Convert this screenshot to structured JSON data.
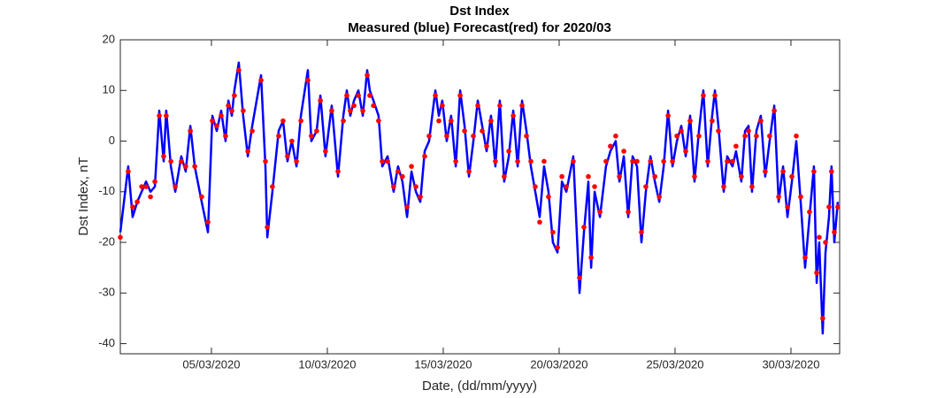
{
  "chart_data": {
    "type": "line",
    "title": "Dst Index",
    "subtitle": "Measured (blue) Forecast(red) for 2020/03",
    "xlabel": "Date, (dd/mm/yyyy)",
    "ylabel": "Dst Index, nT",
    "xlim": [
      1.07,
      32.1
    ],
    "ylim": [
      -42,
      20
    ],
    "xticks": [
      {
        "value": 5,
        "label": "05/03/2020"
      },
      {
        "value": 10,
        "label": "10/03/2020"
      },
      {
        "value": 15,
        "label": "15/03/2020"
      },
      {
        "value": 20,
        "label": "20/03/2020"
      },
      {
        "value": 25,
        "label": "25/03/2020"
      },
      {
        "value": 30,
        "label": "30/03/2020"
      }
    ],
    "yticks": [
      -40,
      -30,
      -20,
      -10,
      0,
      10,
      20
    ],
    "grid": false,
    "x": [
      1.07,
      1.41,
      1.6,
      1.8,
      1.99,
      2.18,
      2.37,
      2.56,
      2.75,
      2.94,
      3.05,
      3.25,
      3.44,
      3.7,
      3.89,
      4.09,
      4.28,
      4.58,
      4.85,
      5.04,
      5.23,
      5.42,
      5.61,
      5.73,
      5.88,
      5.99,
      6.18,
      6.37,
      6.57,
      6.76,
      7.14,
      7.33,
      7.41,
      7.63,
      7.9,
      8.09,
      8.28,
      8.47,
      8.67,
      8.86,
      9.16,
      9.31,
      9.54,
      9.7,
      9.92,
      10.19,
      10.46,
      10.69,
      10.84,
      10.99,
      11.15,
      11.34,
      11.53,
      11.72,
      11.83,
      11.99,
      12.21,
      12.37,
      12.6,
      12.86,
      13.05,
      13.24,
      13.44,
      13.63,
      13.82,
      14.01,
      14.2,
      14.39,
      14.66,
      14.81,
      14.96,
      15.15,
      15.34,
      15.54,
      15.73,
      15.92,
      16.11,
      16.3,
      16.49,
      16.68,
      16.87,
      17.06,
      17.25,
      17.44,
      17.63,
      17.83,
      18.02,
      18.21,
      18.4,
      18.59,
      18.78,
      18.97,
      19.16,
      19.35,
      19.54,
      19.73,
      19.93,
      20.12,
      20.31,
      20.61,
      20.88,
      21.07,
      21.26,
      21.38,
      21.53,
      21.76,
      22.02,
      22.21,
      22.44,
      22.6,
      22.79,
      22.98,
      23.17,
      23.36,
      23.55,
      23.74,
      23.94,
      24.13,
      24.32,
      24.51,
      24.7,
      24.89,
      25.08,
      25.27,
      25.46,
      25.65,
      25.84,
      26.03,
      26.22,
      26.41,
      26.6,
      26.72,
      26.87,
      27.1,
      27.25,
      27.48,
      27.63,
      27.86,
      28.02,
      28.17,
      28.32,
      28.51,
      28.7,
      28.89,
      29.08,
      29.28,
      29.47,
      29.66,
      29.85,
      30.04,
      30.23,
      30.42,
      30.61,
      30.8,
      30.99,
      31.11,
      31.22,
      31.37,
      31.49,
      31.64,
      31.75,
      31.87,
      32.02
    ],
    "series": [
      {
        "name": "Measured",
        "color": "#0000ff",
        "style": "line",
        "values": [
          -18,
          -5,
          -15,
          -12,
          -10,
          -8,
          -10,
          -9,
          6,
          -4,
          6,
          -5,
          -10,
          -3,
          -6,
          3,
          -5,
          -12,
          -18,
          5,
          2,
          6,
          0,
          8,
          5,
          10,
          15.5,
          5,
          -3,
          3,
          13,
          -5,
          -19,
          -10,
          2,
          4,
          -4,
          0,
          -5,
          5,
          14,
          0,
          2,
          9,
          -3,
          7,
          -7,
          5,
          10,
          5,
          8,
          10,
          5,
          14,
          10,
          8,
          5,
          -5,
          -3,
          -10,
          -5,
          -8,
          -15,
          -6,
          -10,
          -12,
          -2,
          0,
          10,
          5,
          8,
          0,
          5,
          -5,
          10,
          3,
          -7,
          0,
          8,
          3,
          -2,
          5,
          -5,
          8,
          -8,
          -3,
          6,
          -5,
          8,
          2,
          -5,
          -10,
          -15,
          -5,
          -10,
          -20,
          -22,
          -8,
          -10,
          -3,
          -30,
          -18,
          -8,
          -25,
          -10,
          -15,
          -5,
          -2,
          0,
          -8,
          -3,
          -15,
          -3,
          -5,
          -20,
          -10,
          -3,
          -8,
          -12,
          -5,
          6,
          -5,
          0,
          3,
          -3,
          5,
          -8,
          2,
          10,
          -5,
          5,
          10,
          3,
          -10,
          -3,
          -5,
          -2,
          -8,
          2,
          3,
          -10,
          2,
          5,
          -7,
          0,
          7,
          -12,
          -5,
          -15,
          -8,
          0,
          -12,
          -25,
          -15,
          -5,
          -28,
          -20,
          -38,
          -22,
          -15,
          -5,
          -20,
          -12
        ]
      },
      {
        "name": "Forecast",
        "color": "#ff0000",
        "style": "markers",
        "values": [
          -19,
          -6,
          -13,
          -12,
          -9,
          -9,
          -11,
          -8,
          5,
          -3,
          5,
          -4,
          -9,
          -4,
          -5,
          2,
          -5,
          -11,
          -16,
          4,
          3,
          5,
          1,
          7,
          6,
          9,
          14,
          6,
          -2,
          2,
          12,
          -4,
          -17,
          -9,
          1,
          4,
          -3,
          0,
          -4,
          4,
          12,
          1,
          2,
          8,
          -2,
          6,
          -6,
          4,
          9,
          6,
          7,
          9,
          6,
          13,
          9,
          7,
          4,
          -4,
          -4,
          -9,
          -6,
          -7,
          -13,
          -5,
          -9,
          -11,
          -3,
          1,
          9,
          4,
          7,
          1,
          4,
          -4,
          9,
          2,
          -6,
          1,
          7,
          2,
          -1,
          4,
          -4,
          7,
          -7,
          -2,
          5,
          -4,
          7,
          1,
          -4,
          -9,
          -16,
          -4,
          -11,
          -18,
          -21,
          -7,
          -9,
          -4,
          -27,
          -17,
          -7,
          -23,
          -9,
          -14,
          -4,
          -1,
          1,
          -7,
          -2,
          -14,
          -4,
          -4,
          -18,
          -9,
          -4,
          -7,
          -11,
          -4,
          5,
          -4,
          1,
          2,
          -2,
          4,
          -7,
          1,
          9,
          -4,
          4,
          9,
          2,
          -9,
          -4,
          -4,
          -1,
          -7,
          1,
          2,
          -9,
          1,
          4,
          -6,
          1,
          6,
          -11,
          -6,
          -13,
          -7,
          1,
          -11,
          -23,
          -14,
          -6,
          -26,
          -19,
          -35,
          -20,
          -13,
          -6,
          -18,
          -13
        ]
      }
    ]
  }
}
